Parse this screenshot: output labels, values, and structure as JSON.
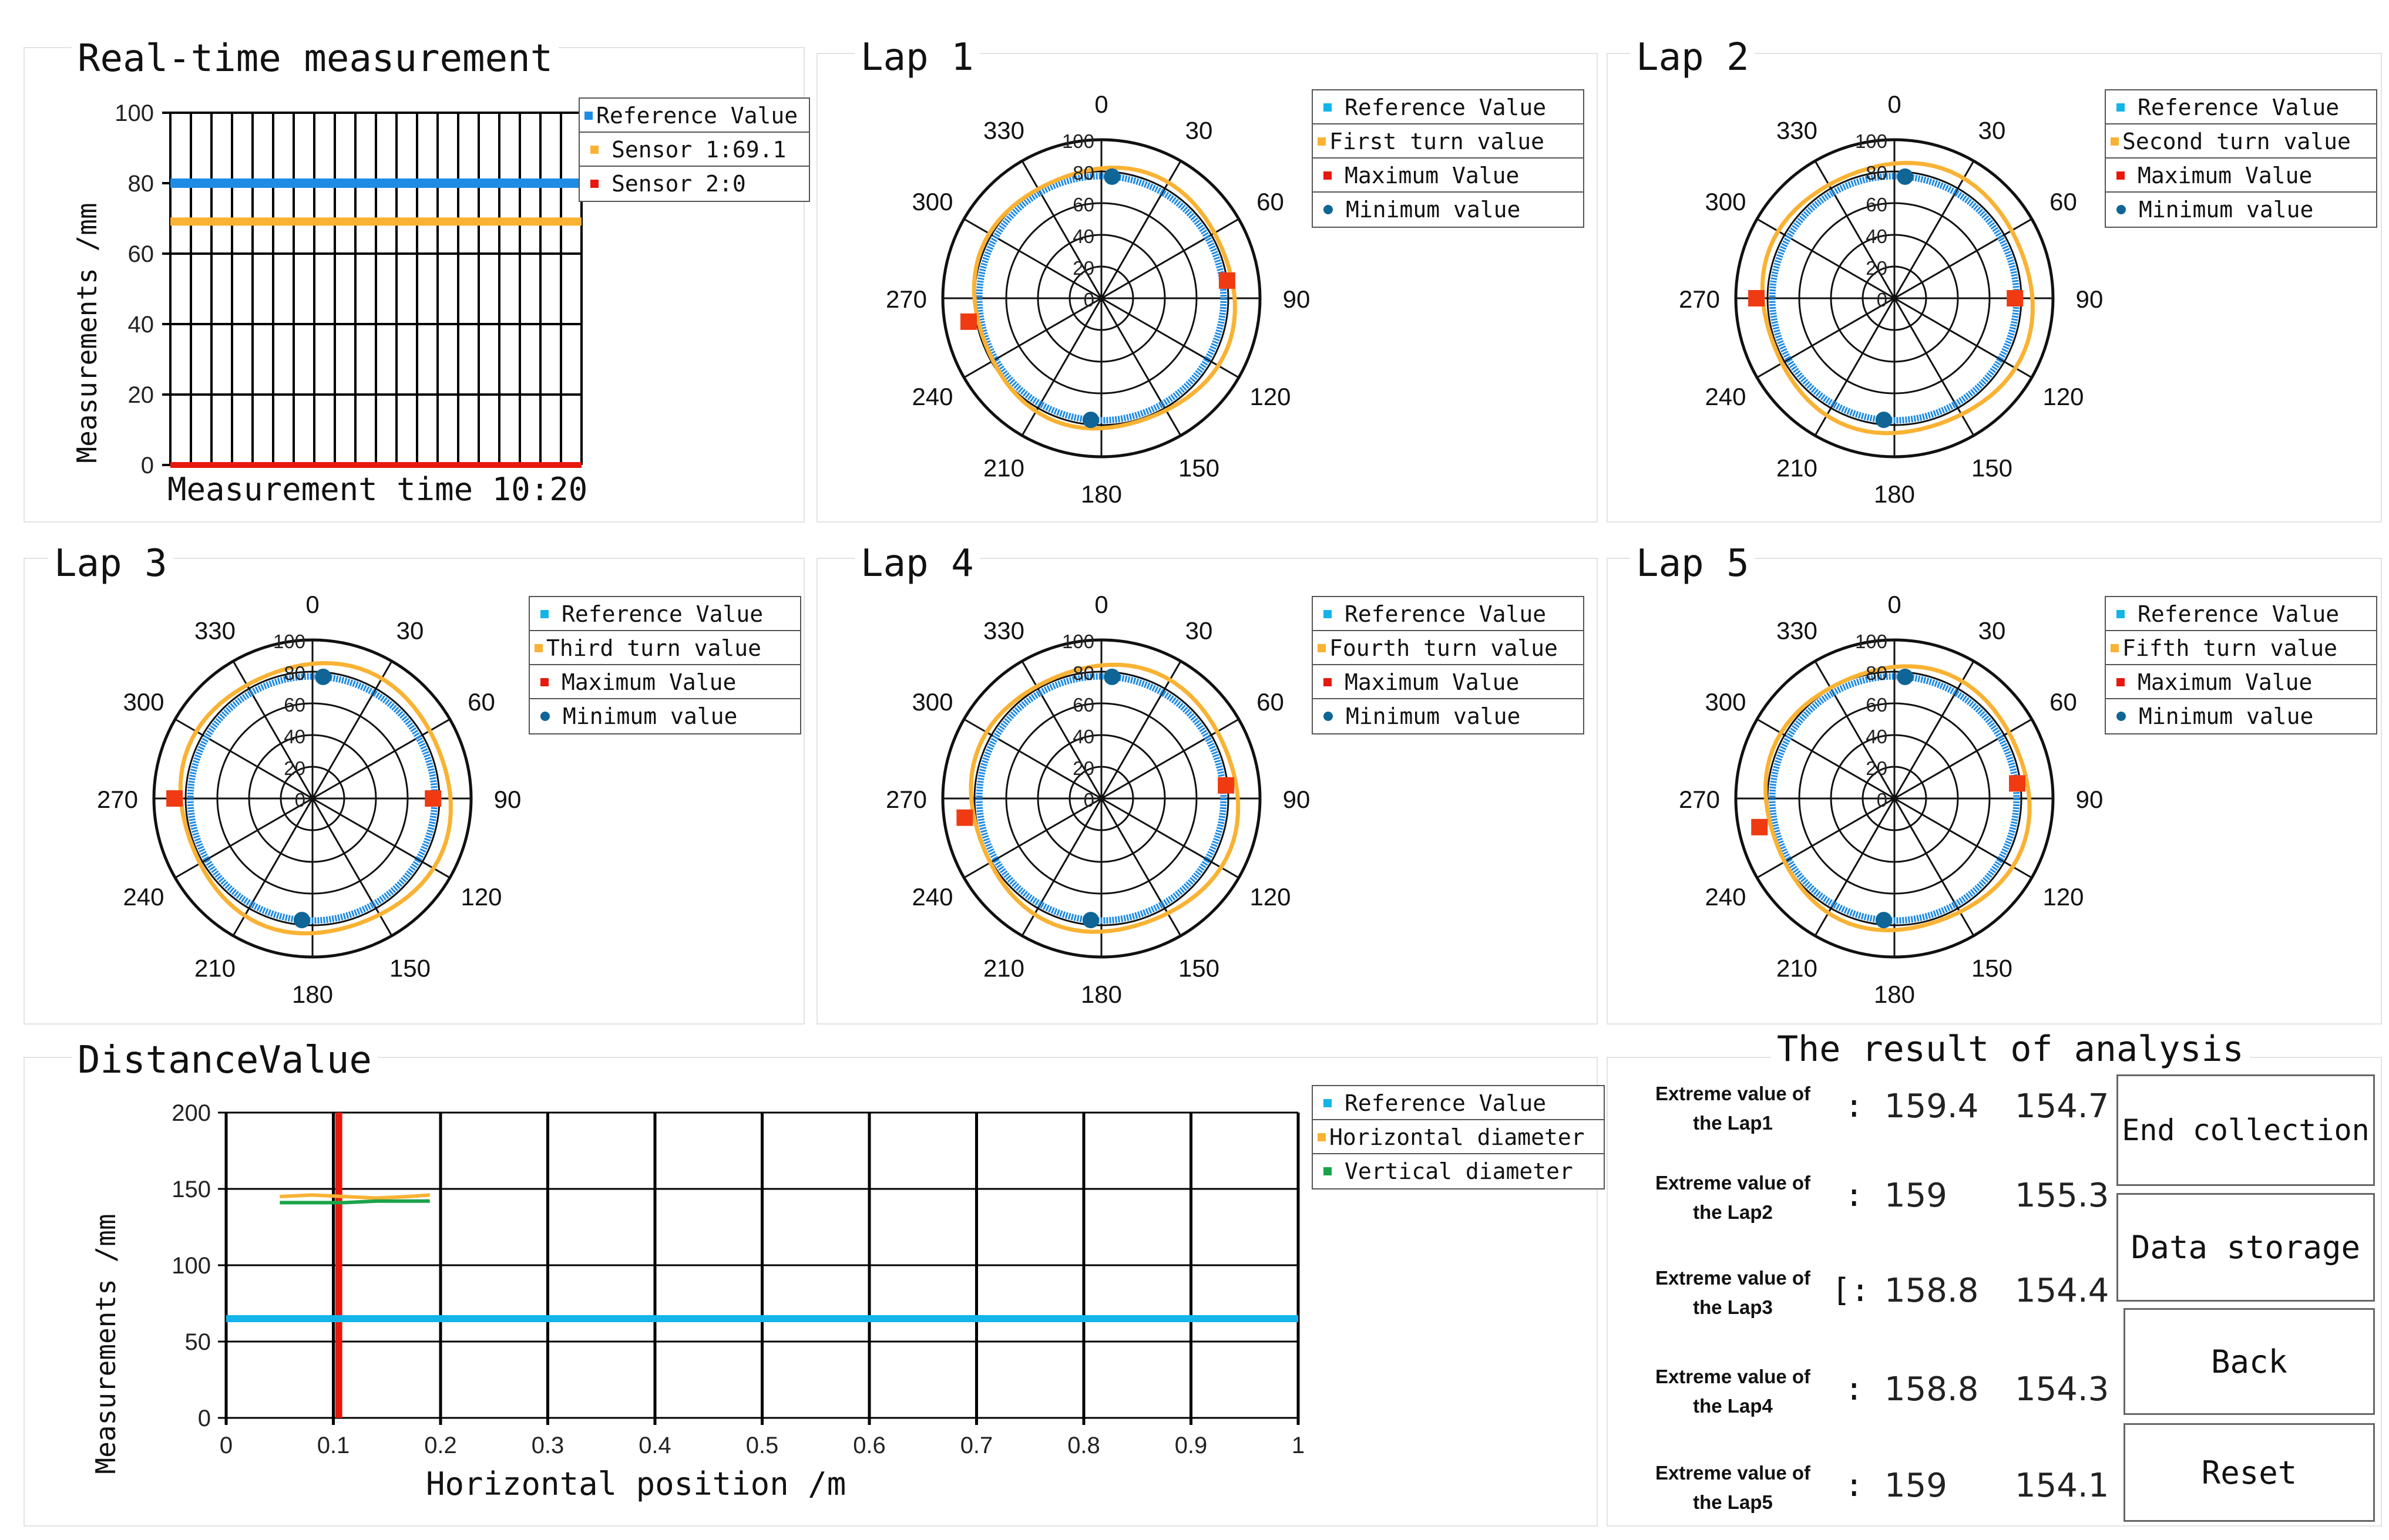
{
  "colors": {
    "reference": "#1E8BE5",
    "reference_light": "#13B4E8",
    "sensor1": "#F9B233",
    "sensor2": "#E8180C",
    "maximum": "#F03A12",
    "minimum": "#0F6595",
    "vertical": "#1BA34A",
    "grid": "#000000"
  },
  "realtime": {
    "title": "Real-time measurement",
    "ylabel": "Measurements /mm",
    "footer": "Measurement time 10:20",
    "legend": [
      {
        "label": "Reference Value",
        "color": "#1E8BE5",
        "shape": "square"
      },
      {
        "label": "Sensor 1:69.1",
        "color": "#F9B233",
        "shape": "square"
      },
      {
        "label": "Sensor 2:0",
        "color": "#E8180C",
        "shape": "square"
      }
    ]
  },
  "laps": [
    {
      "title": "Lap 1",
      "legend": [
        "Reference Value",
        "First turn value",
        "Maximum Value",
        "Minimum value"
      ]
    },
    {
      "title": "Lap 2",
      "legend": [
        "Reference Value",
        "Second turn value",
        "Maximum Value",
        "Minimum value"
      ]
    },
    {
      "title": "Lap 3",
      "legend": [
        "Reference Value",
        "Third turn value",
        "Maximum Value",
        "Minimum value"
      ]
    },
    {
      "title": "Lap 4",
      "legend": [
        "Reference Value",
        "Fourth turn value",
        "Maximum Value",
        "Minimum value"
      ]
    },
    {
      "title": "Lap 5",
      "legend": [
        "Reference Value",
        "Fifth turn value",
        "Maximum Value",
        "Minimum value"
      ]
    }
  ],
  "distance": {
    "title": "DistanceValue",
    "ylabel": "Measurements /mm",
    "xlabel": "Horizontal position /m",
    "legend": [
      {
        "label": "Reference Value",
        "color": "#13B4E8"
      },
      {
        "label": "Horizontal diameter",
        "color": "#F9B233"
      },
      {
        "label": "Vertical diameter",
        "color": "#1BA34A"
      }
    ]
  },
  "analysis": {
    "title": "The result of analysis",
    "rows": [
      {
        "label_line1": "Extreme value of",
        "label_line2": "the Lap1",
        "colon": ":",
        "max": "159.4",
        "min": "154.7"
      },
      {
        "label_line1": "Extreme value of",
        "label_line2": "the Lap2",
        "colon": ":",
        "max": "159",
        "min": "155.3"
      },
      {
        "label_line1": "Extreme value of",
        "label_line2": "the Lap3",
        "colon": "[:",
        "max": "158.8",
        "min": "154.4"
      },
      {
        "label_line1": "Extreme value of",
        "label_line2": "the Lap4",
        "colon": ":",
        "max": "158.8",
        "min": "154.3"
      },
      {
        "label_line1": "Extreme value of",
        "label_line2": "the Lap5",
        "colon": ":",
        "max": "159",
        "min": "154.1"
      }
    ]
  },
  "buttons": {
    "end_collection": "End collection",
    "data_storage": "Data storage",
    "back": "Back",
    "reset": "Reset"
  },
  "chart_data": [
    {
      "id": "realtime",
      "type": "line",
      "title": "Real-time measurement",
      "ylabel": "Measurements /mm",
      "xlabel": "Measurement time 10:20",
      "ylim": [
        0,
        100
      ],
      "yticks": [
        "0",
        "20",
        "40",
        "60",
        "80",
        "100"
      ],
      "x_count": 20,
      "series": [
        {
          "name": "Reference Value",
          "value": 80
        },
        {
          "name": "Sensor 1",
          "value": 69.1
        },
        {
          "name": "Sensor 2",
          "value": 0
        }
      ]
    },
    {
      "id": "polar_laps",
      "type": "polar",
      "r_range": [
        0,
        100
      ],
      "r_ticks": [
        "0",
        "20",
        "40",
        "60",
        "80",
        "100"
      ],
      "angle_ticks": [
        "0",
        "30",
        "60",
        "90",
        "120",
        "150",
        "180",
        "210",
        "240",
        "270",
        "300",
        "330"
      ],
      "reference_radius": 77,
      "laps": [
        {
          "name": "Lap 1",
          "turn_radius": 82,
          "max_angle": 82,
          "max_radius": 80,
          "min_angles": [
            5,
            185
          ],
          "min_radius": 77,
          "second_max_angle": 260,
          "second_max_radius": 85
        },
        {
          "name": "Lap 2",
          "turn_radius": 85,
          "max_angle": 90,
          "max_radius": 76,
          "min_angles": [
            5,
            185
          ],
          "min_radius": 77,
          "second_max_angle": 270,
          "second_max_radius": 87
        },
        {
          "name": "Lap 3",
          "turn_radius": 85,
          "max_angle": 90,
          "max_radius": 76,
          "min_angles": [
            5,
            185
          ],
          "min_radius": 77,
          "second_max_angle": 270,
          "second_max_radius": 87
        },
        {
          "name": "Lap 4",
          "turn_radius": 84,
          "max_angle": 84,
          "max_radius": 79,
          "min_angles": [
            5,
            185
          ],
          "min_radius": 77,
          "second_max_angle": 262,
          "second_max_radius": 87
        },
        {
          "name": "Lap 5",
          "turn_radius": 83,
          "max_angle": 83,
          "max_radius": 78,
          "min_angles": [
            5,
            185
          ],
          "min_radius": 77,
          "second_max_angle": 258,
          "second_max_radius": 87
        }
      ]
    },
    {
      "id": "distance",
      "type": "line",
      "title": "DistanceValue",
      "xlabel": "Horizontal position /m",
      "ylabel": "Measurements /mm",
      "xlim": [
        0,
        1
      ],
      "ylim": [
        0,
        200
      ],
      "xticks": [
        "0",
        "0.1",
        "0.2",
        "0.3",
        "0.4",
        "0.5",
        "0.6",
        "0.7",
        "0.8",
        "0.9",
        "1"
      ],
      "yticks": [
        "0",
        "50",
        "100",
        "150",
        "200"
      ],
      "series": [
        {
          "name": "Reference Value",
          "x": [
            0,
            1
          ],
          "y": [
            65,
            65
          ]
        },
        {
          "name": "Horizontal diameter",
          "x": [
            0.05,
            0.08,
            0.11,
            0.14,
            0.17,
            0.19
          ],
          "y": [
            145,
            146,
            145,
            144,
            145,
            146
          ]
        },
        {
          "name": "Vertical diameter",
          "x": [
            0.05,
            0.08,
            0.11,
            0.14,
            0.17,
            0.19
          ],
          "y": [
            141,
            141,
            141,
            142,
            142,
            142
          ]
        }
      ],
      "marker_x": 0.105
    }
  ]
}
